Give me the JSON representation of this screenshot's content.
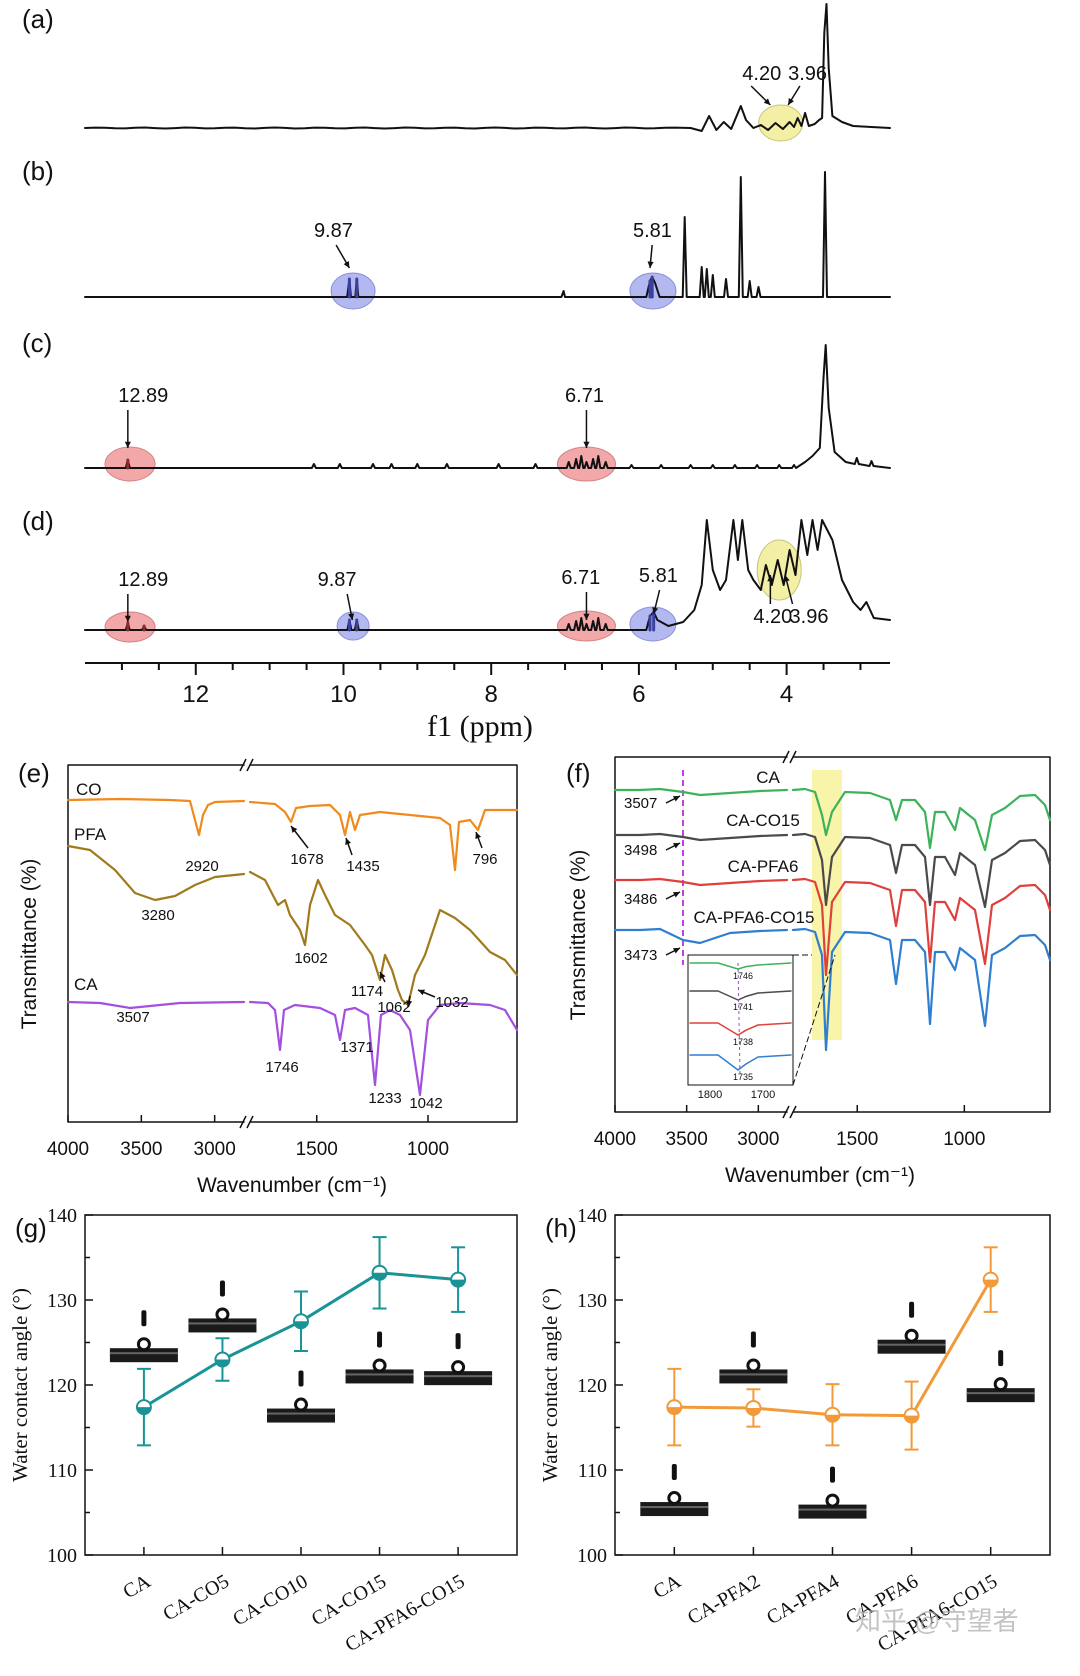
{
  "nmr": {
    "panels": [
      {
        "label": "(a)",
        "peaks": [
          {
            "text": "4.20",
            "ppm": 4.2
          },
          {
            "text": "3.96",
            "ppm": 3.96
          }
        ]
      },
      {
        "label": "(b)",
        "peaks": [
          {
            "text": "9.87",
            "ppm": 9.87
          },
          {
            "text": "5.81",
            "ppm": 5.81
          }
        ]
      },
      {
        "label": "(c)",
        "peaks": [
          {
            "text": "12.89",
            "ppm": 12.89
          },
          {
            "text": "6.71",
            "ppm": 6.71
          }
        ]
      },
      {
        "label": "(d)",
        "peaks": [
          {
            "text": "12.89",
            "ppm": 12.89
          },
          {
            "text": "9.87",
            "ppm": 9.87
          },
          {
            "text": "6.71",
            "ppm": 6.71
          },
          {
            "text": "5.81",
            "ppm": 5.81
          },
          {
            "text": "4.20",
            "ppm": 4.2
          },
          {
            "text": "3.96",
            "ppm": 3.96
          }
        ]
      }
    ],
    "x_ticks": [
      "12",
      "10",
      "8",
      "6",
      "4"
    ],
    "xlabel": "f1 (ppm)",
    "colors": {
      "yellow": "#f3f0a6",
      "blue": "#b3b9f0",
      "red": "#f2a8a8",
      "peak_blue": "#3b3f9e",
      "peak_red": "#8a2e2e"
    }
  },
  "ftir_e": {
    "label": "(e)",
    "ylabel": "Transmittance (%)",
    "xlabel": "Wavenumber (cm⁻¹)",
    "x_ticks": [
      "4000",
      "3500",
      "3000",
      "1500",
      "1000"
    ],
    "series": [
      {
        "name": "CO",
        "color": "#f08a1c",
        "peaks": [
          "2920",
          "1678",
          "1435",
          "796"
        ]
      },
      {
        "name": "PFA",
        "color": "#a07a1c",
        "peaks": [
          "3280",
          "1602",
          "1174",
          "1062",
          "1032"
        ]
      },
      {
        "name": "CA",
        "color": "#a34fe0",
        "peaks": [
          "3507",
          "1746",
          "1371",
          "1233",
          "1042"
        ]
      }
    ]
  },
  "ftir_f": {
    "label": "(f)",
    "ylabel": "Transmittance (%)",
    "xlabel": "Wavenumber (cm⁻¹)",
    "x_ticks": [
      "4000",
      "3500",
      "3000",
      "1500",
      "1000"
    ],
    "series": [
      {
        "name": "CA",
        "color": "#3cb35a",
        "oh": "3507",
        "inset_peak": "1746"
      },
      {
        "name": "CA-CO15",
        "color": "#4a4a4a",
        "oh": "3498",
        "inset_peak": "1741"
      },
      {
        "name": "CA-PFA6",
        "color": "#e0403c",
        "oh": "3486",
        "inset_peak": "1738"
      },
      {
        "name": "CA-PFA6-CO15",
        "color": "#2f7fd1",
        "oh": "3473",
        "inset_peak": "1735"
      }
    ],
    "inset_ticks": [
      "1800",
      "1700"
    ]
  },
  "chart_data": [
    {
      "type": "line",
      "label": "(g)",
      "title": "",
      "xlabel": "",
      "ylabel": "Water contact angle (°)",
      "ylim": [
        100,
        140
      ],
      "y_ticks": [
        "100",
        "110",
        "120",
        "130",
        "140"
      ],
      "categories": [
        "CA",
        "CA-CO5",
        "CA-CO10",
        "CA-CO15",
        "CA-PFA6-CO15"
      ],
      "values": [
        117.4,
        123.0,
        127.5,
        133.2,
        132.4
      ],
      "errors": [
        4.5,
        2.5,
        3.5,
        4.2,
        3.8
      ],
      "droplet_angles": [
        124.8,
        128.3,
        117.7,
        122.3,
        122.1
      ],
      "color": "#1a9396"
    },
    {
      "type": "line",
      "label": "(h)",
      "title": "",
      "xlabel": "",
      "ylabel": "Water contact angle (°)",
      "ylim": [
        100,
        140
      ],
      "y_ticks": [
        "100",
        "110",
        "120",
        "130",
        "140"
      ],
      "categories": [
        "CA",
        "CA-PFA2",
        "CA-PFA4",
        "CA-PFA6",
        "CA-PFA6-CO15"
      ],
      "values": [
        117.4,
        117.3,
        116.5,
        116.4,
        132.4
      ],
      "errors": [
        4.5,
        2.2,
        3.6,
        4.0,
        3.8
      ],
      "droplet_angles": [
        106.7,
        122.3,
        106.4,
        125.8,
        120.1
      ],
      "color": "#f29a3a"
    }
  ],
  "watermark": "知乎 @守望者"
}
